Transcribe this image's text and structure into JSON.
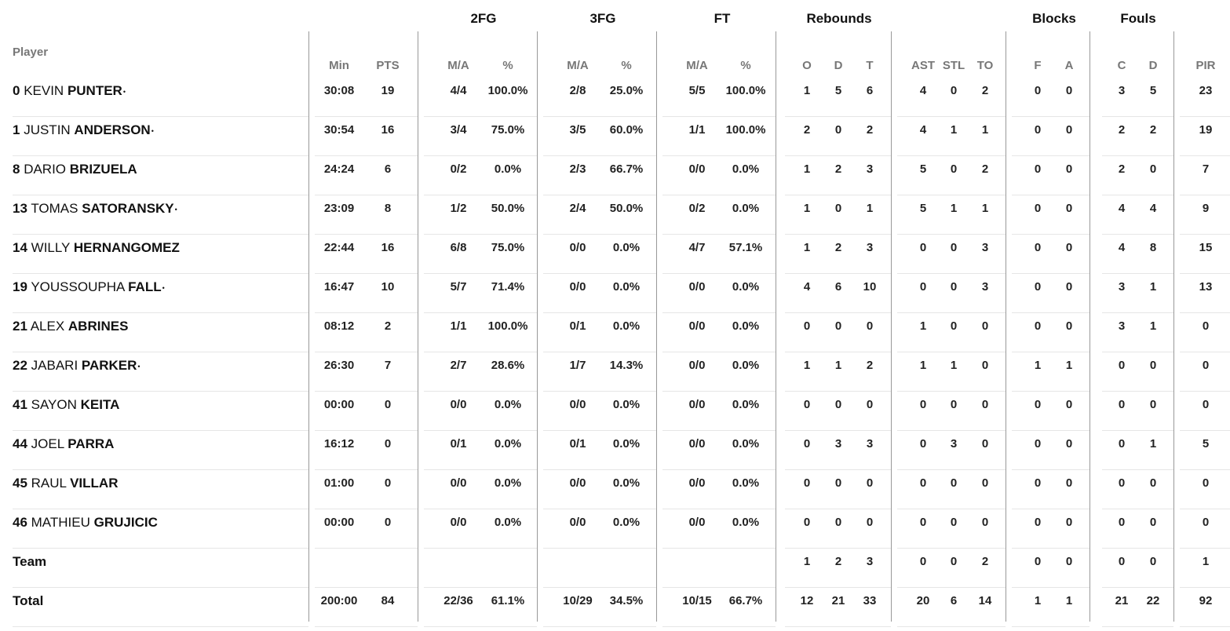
{
  "headers": {
    "player": "Player",
    "groups": [
      "2FG",
      "3FG",
      "FT",
      "Rebounds",
      "Blocks",
      "Fouls"
    ],
    "columns": [
      "Min",
      "PTS",
      "M/A",
      "%",
      "M/A",
      "%",
      "M/A",
      "%",
      "O",
      "D",
      "T",
      "AST",
      "STL",
      "TO",
      "F",
      "A",
      "C",
      "D",
      "PIR"
    ]
  },
  "players": [
    {
      "number": "0",
      "first": "KEVIN",
      "last": "PUNTER",
      "starter": true,
      "stats": [
        "30:08",
        "19",
        "4/4",
        "100.0%",
        "2/8",
        "25.0%",
        "5/5",
        "100.0%",
        "1",
        "5",
        "6",
        "4",
        "0",
        "2",
        "0",
        "0",
        "3",
        "5",
        "23"
      ]
    },
    {
      "number": "1",
      "first": "JUSTIN",
      "last": "ANDERSON",
      "starter": true,
      "stats": [
        "30:54",
        "16",
        "3/4",
        "75.0%",
        "3/5",
        "60.0%",
        "1/1",
        "100.0%",
        "2",
        "0",
        "2",
        "4",
        "1",
        "1",
        "0",
        "0",
        "2",
        "2",
        "19"
      ]
    },
    {
      "number": "8",
      "first": "DARIO",
      "last": "BRIZUELA",
      "starter": false,
      "stats": [
        "24:24",
        "6",
        "0/2",
        "0.0%",
        "2/3",
        "66.7%",
        "0/0",
        "0.0%",
        "1",
        "2",
        "3",
        "5",
        "0",
        "2",
        "0",
        "0",
        "2",
        "0",
        "7"
      ]
    },
    {
      "number": "13",
      "first": "TOMAS",
      "last": "SATORANSKY",
      "starter": true,
      "stats": [
        "23:09",
        "8",
        "1/2",
        "50.0%",
        "2/4",
        "50.0%",
        "0/2",
        "0.0%",
        "1",
        "0",
        "1",
        "5",
        "1",
        "1",
        "0",
        "0",
        "4",
        "4",
        "9"
      ]
    },
    {
      "number": "14",
      "first": "WILLY",
      "last": "HERNANGOMEZ",
      "starter": false,
      "stats": [
        "22:44",
        "16",
        "6/8",
        "75.0%",
        "0/0",
        "0.0%",
        "4/7",
        "57.1%",
        "1",
        "2",
        "3",
        "0",
        "0",
        "3",
        "0",
        "0",
        "4",
        "8",
        "15"
      ]
    },
    {
      "number": "19",
      "first": "YOUSSOUPHA",
      "last": "FALL",
      "starter": true,
      "stats": [
        "16:47",
        "10",
        "5/7",
        "71.4%",
        "0/0",
        "0.0%",
        "0/0",
        "0.0%",
        "4",
        "6",
        "10",
        "0",
        "0",
        "3",
        "0",
        "0",
        "3",
        "1",
        "13"
      ]
    },
    {
      "number": "21",
      "first": "ALEX",
      "last": "ABRINES",
      "starter": false,
      "stats": [
        "08:12",
        "2",
        "1/1",
        "100.0%",
        "0/1",
        "0.0%",
        "0/0",
        "0.0%",
        "0",
        "0",
        "0",
        "1",
        "0",
        "0",
        "0",
        "0",
        "3",
        "1",
        "0"
      ]
    },
    {
      "number": "22",
      "first": "JABARI",
      "last": "PARKER",
      "starter": true,
      "stats": [
        "26:30",
        "7",
        "2/7",
        "28.6%",
        "1/7",
        "14.3%",
        "0/0",
        "0.0%",
        "1",
        "1",
        "2",
        "1",
        "1",
        "0",
        "1",
        "1",
        "0",
        "0",
        "0"
      ]
    },
    {
      "number": "41",
      "first": "SAYON",
      "last": "KEITA",
      "starter": false,
      "stats": [
        "00:00",
        "0",
        "0/0",
        "0.0%",
        "0/0",
        "0.0%",
        "0/0",
        "0.0%",
        "0",
        "0",
        "0",
        "0",
        "0",
        "0",
        "0",
        "0",
        "0",
        "0",
        "0"
      ]
    },
    {
      "number": "44",
      "first": "JOEL",
      "last": "PARRA",
      "starter": false,
      "stats": [
        "16:12",
        "0",
        "0/1",
        "0.0%",
        "0/1",
        "0.0%",
        "0/0",
        "0.0%",
        "0",
        "3",
        "3",
        "0",
        "3",
        "0",
        "0",
        "0",
        "0",
        "1",
        "5"
      ]
    },
    {
      "number": "45",
      "first": "RAUL",
      "last": "VILLAR",
      "starter": false,
      "stats": [
        "01:00",
        "0",
        "0/0",
        "0.0%",
        "0/0",
        "0.0%",
        "0/0",
        "0.0%",
        "0",
        "0",
        "0",
        "0",
        "0",
        "0",
        "0",
        "0",
        "0",
        "0",
        "0"
      ]
    },
    {
      "number": "46",
      "first": "MATHIEU",
      "last": "GRUJICIC",
      "starter": false,
      "stats": [
        "00:00",
        "0",
        "0/0",
        "0.0%",
        "0/0",
        "0.0%",
        "0/0",
        "0.0%",
        "0",
        "0",
        "0",
        "0",
        "0",
        "0",
        "0",
        "0",
        "0",
        "0",
        "0"
      ]
    }
  ],
  "team": {
    "label": "Team",
    "stats": [
      "",
      "",
      "",
      "",
      "",
      "",
      "",
      "",
      "1",
      "2",
      "3",
      "0",
      "0",
      "2",
      "0",
      "0",
      "0",
      "0",
      "1"
    ]
  },
  "total": {
    "label": "Total",
    "stats": [
      "200:00",
      "84",
      "22/36",
      "61.1%",
      "10/29",
      "34.5%",
      "10/15",
      "66.7%",
      "12",
      "21",
      "33",
      "20",
      "6",
      "14",
      "1",
      "1",
      "21",
      "22",
      "92"
    ]
  },
  "starter_mark": "•"
}
